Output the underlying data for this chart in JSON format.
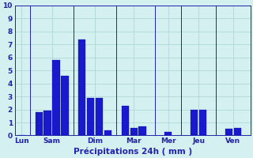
{
  "values": [
    0.0,
    1.8,
    1.9,
    5.8,
    4.6,
    7.4,
    2.9,
    2.9,
    0.4,
    2.3,
    0.6,
    0.7,
    0.3,
    2.0,
    2.0,
    0.5,
    0.6
  ],
  "x_positions": [
    0,
    2,
    3,
    4,
    5,
    7,
    8,
    9,
    10,
    12,
    13,
    14,
    17,
    20,
    21,
    24,
    25
  ],
  "day_labels": [
    "Lun",
    "Sam",
    "Dim",
    "Mar",
    "Mer",
    "Jeu",
    "Ven"
  ],
  "day_tick_positions": [
    0,
    3.5,
    8.5,
    13,
    17,
    20.5,
    24.5
  ],
  "sep_positions": [
    1.0,
    6.0,
    11.0,
    15.5,
    18.5,
    22.5
  ],
  "bar_color": "#1a1acc",
  "bar_edge_color": "#0000aa",
  "background_color": "#d4f0f0",
  "grid_color": "#b0d8d8",
  "text_color": "#2222aa",
  "xlabel": "Précipitations 24h ( mm )",
  "ylim": [
    0,
    10
  ],
  "yticks": [
    0,
    1,
    2,
    3,
    4,
    5,
    6,
    7,
    8,
    9,
    10
  ],
  "xlim": [
    -0.8,
    26.5
  ],
  "bar_width": 0.85
}
